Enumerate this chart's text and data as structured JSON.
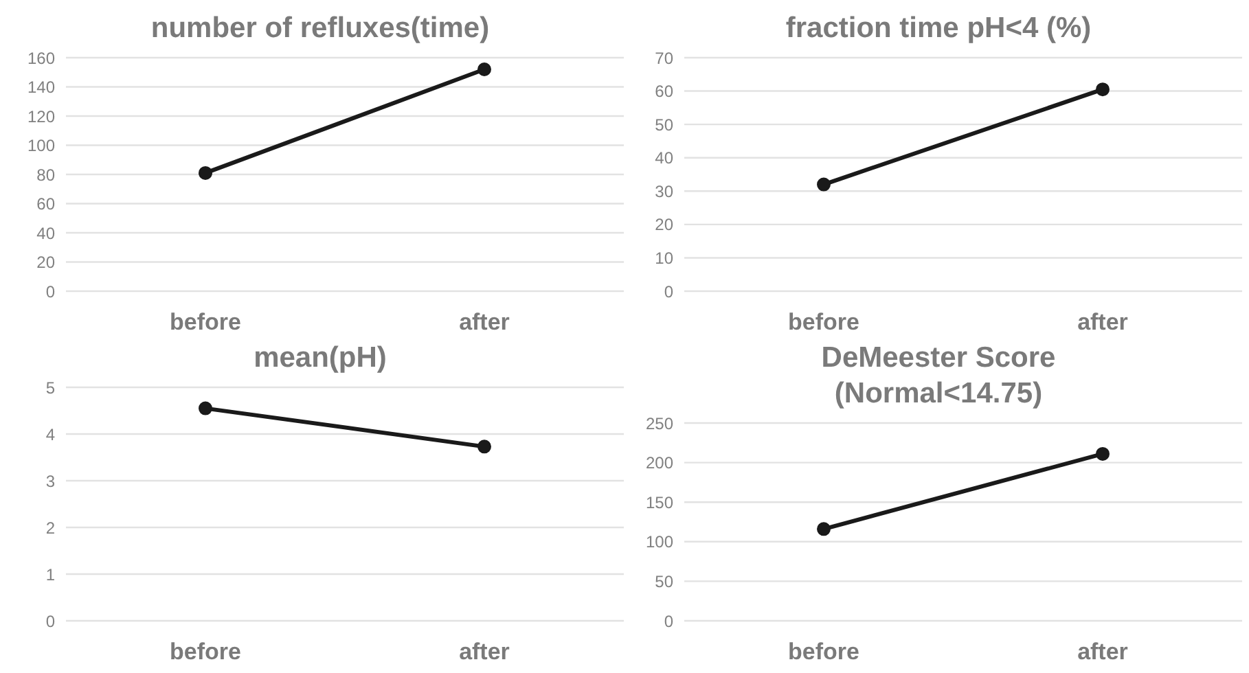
{
  "chart_data": [
    {
      "type": "line",
      "title": "number of refluxes(time)",
      "categories": [
        "before",
        "after"
      ],
      "values": [
        81,
        152
      ],
      "color": "#1a1a1a",
      "ylim": [
        0,
        160
      ],
      "yticks": [
        0,
        20,
        40,
        60,
        80,
        100,
        120,
        140,
        160
      ],
      "grid": "y",
      "marker": "circle"
    },
    {
      "type": "line",
      "title": "fraction time pH<4 (%)",
      "categories": [
        "before",
        "after"
      ],
      "values": [
        32,
        60.5
      ],
      "color": "#1a1a1a",
      "ylim": [
        0,
        70
      ],
      "yticks": [
        0,
        10,
        20,
        30,
        40,
        50,
        60,
        70
      ],
      "grid": "y",
      "marker": "circle"
    },
    {
      "type": "line",
      "title": "mean(pH)",
      "categories": [
        "before",
        "after"
      ],
      "values": [
        4.55,
        3.73
      ],
      "color": "#1a1a1a",
      "ylim": [
        0,
        5
      ],
      "yticks": [
        0,
        1,
        2,
        3,
        4,
        5
      ],
      "grid": "y",
      "marker": "circle"
    },
    {
      "type": "line",
      "title": "DeMeester Score (Normal<14.75)",
      "categories": [
        "before",
        "after"
      ],
      "values": [
        116,
        211
      ],
      "color": "#1a1a1a",
      "ylim": [
        0,
        250
      ],
      "yticks": [
        0,
        50,
        100,
        150,
        200,
        250
      ],
      "grid": "y",
      "marker": "circle"
    }
  ]
}
